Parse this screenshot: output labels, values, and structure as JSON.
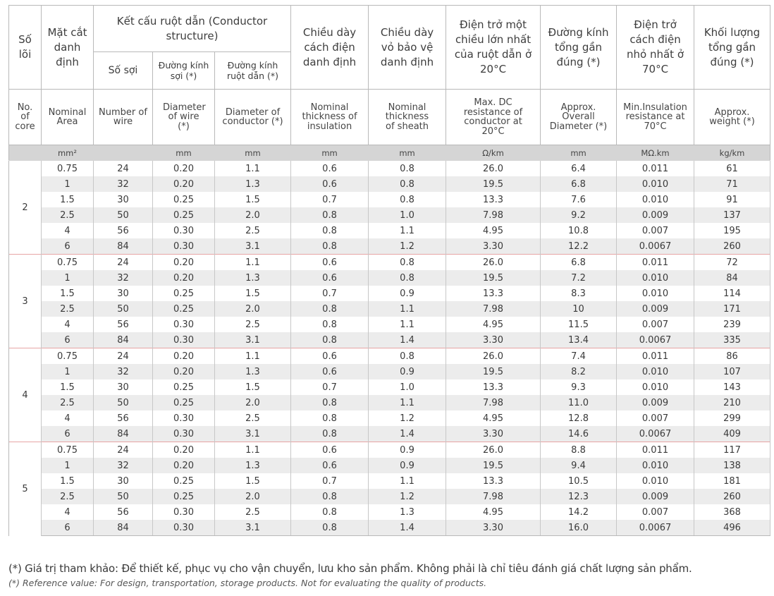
{
  "header_vi": {
    "cores": "Số lõi",
    "area": "Mặt cắt danh định",
    "conductor_group": "Kết cấu ruột dẫn (Conductor structure)",
    "wires": "Số sợi",
    "wire_dia": "Đường kính sợi (*)",
    "cond_dia": "Đường kính ruột dẫn (*)",
    "ins_thick": "Chiều dày cách điện danh định",
    "sheath_thick": "Chiều dày vỏ bảo vệ danh định",
    "resistance": "Điện trở một chiều lớn nhất của ruột dẫn ở 20°C",
    "overall_dia": "Đường kính tổng gần đúng (*)",
    "ins_resistance": "Điện trở cách điện nhỏ nhất ở 70°C",
    "weight": "Khối lượng tổng gần đúng (*)"
  },
  "header_en": {
    "cores": "No. of core",
    "area": "Nominal Area",
    "wires": "Number of wire",
    "wire_dia": "Diameter of wire (*)",
    "cond_dia": "Diameter of conductor (*)",
    "ins_thick": "Nominal thickness of insulation",
    "sheath_thick": "Nominal thickness of sheath",
    "resistance": "Max. DC resistance of conductor at 20°C",
    "overall_dia": "Approx. Overall Diameter (*)",
    "ins_resistance": "Min.Insulation resistance at 70°C",
    "weight": "Approx. weight (*)"
  },
  "units": [
    "",
    "mm²",
    "",
    "mm",
    "mm",
    "mm",
    "mm",
    "Ω/km",
    "mm",
    "MΩ.km",
    "kg/km"
  ],
  "groups": [
    {
      "core": "2",
      "rows": [
        [
          "0.75",
          "24",
          "0.20",
          "1.1",
          "0.6",
          "0.8",
          "26.0",
          "6.4",
          "0.011",
          "61"
        ],
        [
          "1",
          "32",
          "0.20",
          "1.3",
          "0.6",
          "0.8",
          "19.5",
          "6.8",
          "0.010",
          "71"
        ],
        [
          "1.5",
          "30",
          "0.25",
          "1.5",
          "0.7",
          "0.8",
          "13.3",
          "7.6",
          "0.010",
          "91"
        ],
        [
          "2.5",
          "50",
          "0.25",
          "2.0",
          "0.8",
          "1.0",
          "7.98",
          "9.2",
          "0.009",
          "137"
        ],
        [
          "4",
          "56",
          "0.30",
          "2.5",
          "0.8",
          "1.1",
          "4.95",
          "10.8",
          "0.007",
          "195"
        ],
        [
          "6",
          "84",
          "0.30",
          "3.1",
          "0.8",
          "1.2",
          "3.30",
          "12.2",
          "0.0067",
          "260"
        ]
      ]
    },
    {
      "core": "3",
      "rows": [
        [
          "0.75",
          "24",
          "0.20",
          "1.1",
          "0.6",
          "0.8",
          "26.0",
          "6.8",
          "0.011",
          "72"
        ],
        [
          "1",
          "32",
          "0.20",
          "1.3",
          "0.6",
          "0.8",
          "19.5",
          "7.2",
          "0.010",
          "84"
        ],
        [
          "1.5",
          "30",
          "0.25",
          "1.5",
          "0.7",
          "0.9",
          "13.3",
          "8.3",
          "0.010",
          "114"
        ],
        [
          "2.5",
          "50",
          "0.25",
          "2.0",
          "0.8",
          "1.1",
          "7.98",
          "10",
          "0.009",
          "171"
        ],
        [
          "4",
          "56",
          "0.30",
          "2.5",
          "0.8",
          "1.1",
          "4.95",
          "11.5",
          "0.007",
          "239"
        ],
        [
          "6",
          "84",
          "0.30",
          "3.1",
          "0.8",
          "1.4",
          "3.30",
          "13.4",
          "0.0067",
          "335"
        ]
      ]
    },
    {
      "core": "4",
      "rows": [
        [
          "0.75",
          "24",
          "0.20",
          "1.1",
          "0.6",
          "0.8",
          "26.0",
          "7.4",
          "0.011",
          "86"
        ],
        [
          "1",
          "32",
          "0.20",
          "1.3",
          "0.6",
          "0.9",
          "19.5",
          "8.2",
          "0.010",
          "107"
        ],
        [
          "1.5",
          "30",
          "0.25",
          "1.5",
          "0.7",
          "1.0",
          "13.3",
          "9.3",
          "0.010",
          "143"
        ],
        [
          "2.5",
          "50",
          "0.25",
          "2.0",
          "0.8",
          "1.1",
          "7.98",
          "11.0",
          "0.009",
          "210"
        ],
        [
          "4",
          "56",
          "0.30",
          "2.5",
          "0.8",
          "1.2",
          "4.95",
          "12.8",
          "0.007",
          "299"
        ],
        [
          "6",
          "84",
          "0.30",
          "3.1",
          "0.8",
          "1.4",
          "3.30",
          "14.6",
          "0.0067",
          "409"
        ]
      ]
    },
    {
      "core": "5",
      "rows": [
        [
          "0.75",
          "24",
          "0.20",
          "1.1",
          "0.6",
          "0.9",
          "26.0",
          "8.8",
          "0.011",
          "117"
        ],
        [
          "1",
          "32",
          "0.20",
          "1.3",
          "0.6",
          "0.9",
          "19.5",
          "9.4",
          "0.010",
          "138"
        ],
        [
          "1.5",
          "30",
          "0.25",
          "1.5",
          "0.7",
          "1.1",
          "13.3",
          "10.5",
          "0.010",
          "181"
        ],
        [
          "2.5",
          "50",
          "0.25",
          "2.0",
          "0.8",
          "1.2",
          "7.98",
          "12.3",
          "0.009",
          "260"
        ],
        [
          "4",
          "56",
          "0.30",
          "2.5",
          "0.8",
          "1.3",
          "4.95",
          "14.2",
          "0.007",
          "368"
        ],
        [
          "6",
          "84",
          "0.30",
          "3.1",
          "0.8",
          "1.4",
          "3.30",
          "16.0",
          "0.0067",
          "496"
        ]
      ]
    }
  ],
  "notes": {
    "vi": "(*) Giá trị tham khảo: Để thiết kế, phục vụ cho vận chuyển, lưu kho sản phẩm. Không phải là chỉ tiêu đánh giá chất lượng sản phẩm.",
    "en": "(*) Reference value: For design, transportation, storage products. Not for evaluating the quality of products."
  },
  "colors": {
    "unit_row": "#d5d5d5",
    "stripe": "#ececec",
    "group_divider": "#e7a5a5",
    "border": "#b9b9b9"
  }
}
